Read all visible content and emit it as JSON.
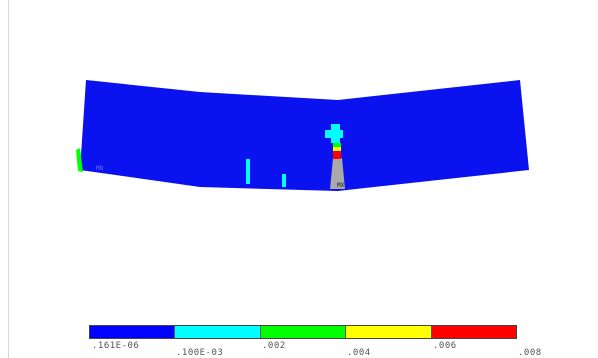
{
  "contour": {
    "bands": [
      {
        "name": "band-1",
        "color": "#0000ff"
      },
      {
        "name": "band-2",
        "color": "#00ffff"
      },
      {
        "name": "band-3",
        "color": "#00ff00"
      },
      {
        "name": "band-4",
        "color": "#ffff00"
      },
      {
        "name": "band-5",
        "color": "#ff0000"
      }
    ],
    "tick_labels": [
      ".161E-06",
      ".100E-03",
      ".002",
      ".004",
      ".006",
      ".008"
    ],
    "beam_color": "#0a12f0",
    "hot_zone_color": "#a9a9a9",
    "node_labels": {
      "left": "MN",
      "center": "MX"
    }
  }
}
